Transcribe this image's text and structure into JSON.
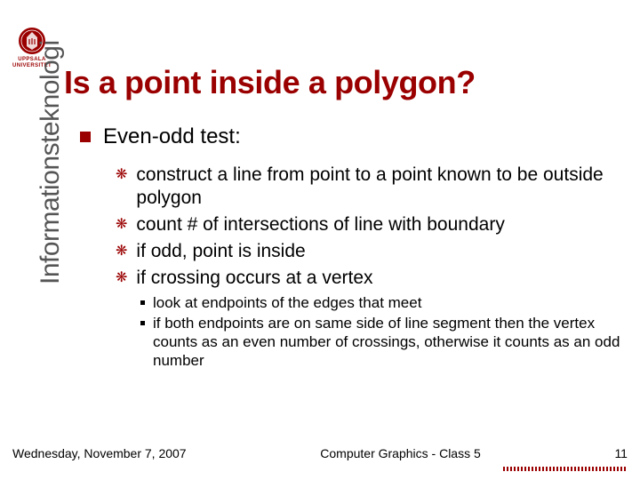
{
  "colors": {
    "accent": "#9a0000",
    "sidebar_text": "#555555",
    "body_text": "#000000",
    "background": "#ffffff"
  },
  "logo": {
    "line1": "UPPSALA",
    "line2": "UNIVERSITET",
    "mark_fill": "#9a0000"
  },
  "title": "Is a point inside a polygon?",
  "sidebar_label": "Informationsteknologi",
  "body": {
    "lvl1": "Even-odd test:",
    "lvl2": [
      "construct a line from point to a point known to be outside polygon",
      "count # of intersections of line with boundary",
      "if odd, point is inside",
      "if crossing occurs at a vertex"
    ],
    "lvl3": [
      "look at endpoints of the edges that meet",
      "if both endpoints are on same side of line segment then the vertex counts as an even number of crossings, otherwise it counts as an odd number"
    ]
  },
  "footer": {
    "date": "Wednesday, November 7, 2007",
    "center": "Computer Graphics - Class 5",
    "page": "11",
    "bar_segments": 70,
    "bar_colors": {
      "dark": "#9a0000",
      "light": "#ffffff"
    }
  },
  "typography": {
    "title_fontsize": 36,
    "lvl1_fontsize": 24,
    "lvl2_fontsize": 21,
    "lvl3_fontsize": 17,
    "sidebar_fontsize": 30,
    "footer_fontsize": 14
  }
}
